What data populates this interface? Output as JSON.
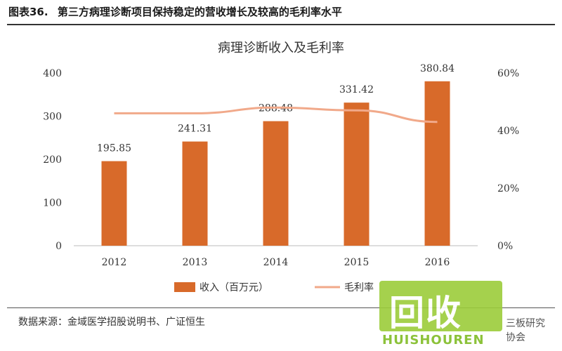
{
  "header": {
    "figure_label": "图表36.",
    "figure_title": "第三方病理诊断项目保持稳定的营收增长及较高的毛利率水平"
  },
  "chart_data": {
    "type": "bar",
    "title": "病理诊断收入及毛利率",
    "categories": [
      "2012",
      "2013",
      "2014",
      "2015",
      "2016"
    ],
    "series": [
      {
        "name": "收入（百万元）",
        "type": "bar",
        "axis": "left",
        "color": "#d86a2a",
        "values": [
          195.85,
          241.31,
          288.48,
          331.42,
          380.84
        ],
        "labels": [
          "195.85",
          "241.31",
          "288.48",
          "331.42",
          "380.84"
        ]
      },
      {
        "name": "毛利率",
        "type": "line",
        "axis": "right",
        "color": "#f1a98a",
        "values": [
          0.46,
          0.46,
          0.48,
          0.47,
          0.43
        ]
      }
    ],
    "y_left": {
      "range": [
        0,
        400
      ],
      "ticks": [
        "0",
        "100",
        "200",
        "300",
        "400"
      ]
    },
    "y_right": {
      "range": [
        0,
        0.6
      ],
      "ticks": [
        "0%",
        "20%",
        "40%",
        "60%"
      ]
    },
    "legend": {
      "position": "bottom"
    },
    "grid": false
  },
  "footer": {
    "source": "数据来源：金域医学招股说明书、广证恒生"
  },
  "watermark": {
    "big": "回收",
    "small": "HUISHOUREN",
    "right": "三板研究协会"
  }
}
